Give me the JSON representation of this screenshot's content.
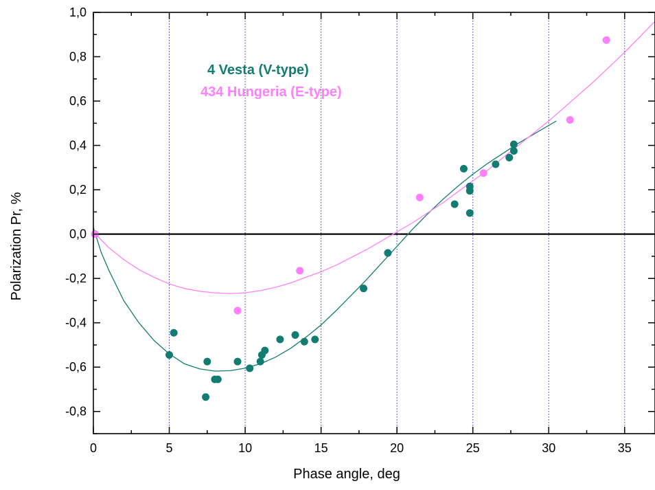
{
  "chart_data": {
    "type": "scatter",
    "xlabel": "Phase angle, deg",
    "ylabel": "Polarization Pr, %",
    "xlim": [
      0,
      37
    ],
    "ylim": [
      -0.9,
      1.0
    ],
    "x_ticks": [
      0,
      5,
      10,
      15,
      20,
      25,
      30,
      35
    ],
    "x_tick_labels": [
      "0",
      "5",
      "10",
      "15",
      "20",
      "25",
      "30",
      "35"
    ],
    "y_ticks": [
      -0.8,
      -0.6,
      -0.4,
      -0.2,
      0.0,
      0.2,
      0.4,
      0.6,
      0.8,
      1.0
    ],
    "y_tick_labels": [
      "-0,8",
      "-0,6",
      "-0,4",
      "-0,2",
      "0,0",
      "0,2",
      "0,4",
      "0,6",
      "0,8",
      "1,0"
    ],
    "vertical_gridlines_at": [
      5,
      10,
      15,
      20,
      25,
      30,
      35
    ],
    "zero_line": true,
    "legend_placement": "top-center",
    "series": [
      {
        "name": "4 Vesta (V-type)",
        "color": "#137c72",
        "points": [
          {
            "x": 0.1,
            "y": 0.0
          },
          {
            "x": 5.0,
            "y": -0.545
          },
          {
            "x": 5.3,
            "y": -0.445
          },
          {
            "x": 7.4,
            "y": -0.735
          },
          {
            "x": 7.5,
            "y": -0.575
          },
          {
            "x": 8.0,
            "y": -0.655
          },
          {
            "x": 8.2,
            "y": -0.655
          },
          {
            "x": 9.5,
            "y": -0.575
          },
          {
            "x": 10.3,
            "y": -0.605
          },
          {
            "x": 11.0,
            "y": -0.575
          },
          {
            "x": 11.1,
            "y": -0.545
          },
          {
            "x": 11.3,
            "y": -0.525
          },
          {
            "x": 12.3,
            "y": -0.475
          },
          {
            "x": 13.3,
            "y": -0.455
          },
          {
            "x": 13.9,
            "y": -0.485
          },
          {
            "x": 14.6,
            "y": -0.475
          },
          {
            "x": 17.8,
            "y": -0.245
          },
          {
            "x": 19.4,
            "y": -0.085
          },
          {
            "x": 23.8,
            "y": 0.135
          },
          {
            "x": 24.4,
            "y": 0.295
          },
          {
            "x": 24.8,
            "y": 0.215
          },
          {
            "x": 24.8,
            "y": 0.195
          },
          {
            "x": 24.8,
            "y": 0.095
          },
          {
            "x": 26.5,
            "y": 0.315
          },
          {
            "x": 27.4,
            "y": 0.345
          },
          {
            "x": 27.7,
            "y": 0.375
          },
          {
            "x": 27.7,
            "y": 0.405
          }
        ],
        "fit_curve": [
          {
            "x": 0,
            "y": 0.03
          },
          {
            "x": 0.5,
            "y": -0.08
          },
          {
            "x": 1.0,
            "y": -0.16
          },
          {
            "x": 2.0,
            "y": -0.3
          },
          {
            "x": 3.0,
            "y": -0.4
          },
          {
            "x": 4.0,
            "y": -0.48
          },
          {
            "x": 5.0,
            "y": -0.54
          },
          {
            "x": 6.0,
            "y": -0.585
          },
          {
            "x": 7.0,
            "y": -0.608
          },
          {
            "x": 8.0,
            "y": -0.618
          },
          {
            "x": 9.0,
            "y": -0.616
          },
          {
            "x": 10.0,
            "y": -0.605
          },
          {
            "x": 11.0,
            "y": -0.585
          },
          {
            "x": 12.0,
            "y": -0.555
          },
          {
            "x": 13.0,
            "y": -0.515
          },
          {
            "x": 14.0,
            "y": -0.465
          },
          {
            "x": 15.0,
            "y": -0.41
          },
          {
            "x": 16.0,
            "y": -0.345
          },
          {
            "x": 17.0,
            "y": -0.275
          },
          {
            "x": 18.0,
            "y": -0.205
          },
          {
            "x": 19.0,
            "y": -0.13
          },
          {
            "x": 20.0,
            "y": -0.055
          },
          {
            "x": 21.0,
            "y": 0.02
          },
          {
            "x": 22.0,
            "y": 0.09
          },
          {
            "x": 23.0,
            "y": 0.155
          },
          {
            "x": 24.0,
            "y": 0.215
          },
          {
            "x": 25.0,
            "y": 0.27
          },
          {
            "x": 26.0,
            "y": 0.32
          },
          {
            "x": 27.0,
            "y": 0.365
          },
          {
            "x": 28.0,
            "y": 0.41
          },
          {
            "x": 29.0,
            "y": 0.45
          },
          {
            "x": 30.0,
            "y": 0.49
          },
          {
            "x": 30.5,
            "y": 0.51
          }
        ]
      },
      {
        "name": "434 Hungeria (E-type)",
        "color": "#ff80ff",
        "points": [
          {
            "x": 0.1,
            "y": 0.0
          },
          {
            "x": 9.5,
            "y": -0.345
          },
          {
            "x": 13.6,
            "y": -0.165
          },
          {
            "x": 21.5,
            "y": 0.165
          },
          {
            "x": 25.7,
            "y": 0.275
          },
          {
            "x": 31.4,
            "y": 0.515
          },
          {
            "x": 33.8,
            "y": 0.875
          }
        ],
        "fit_curve": [
          {
            "x": 0,
            "y": 0.01
          },
          {
            "x": 1.0,
            "y": -0.06
          },
          {
            "x": 2.0,
            "y": -0.115
          },
          {
            "x": 3.0,
            "y": -0.16
          },
          {
            "x": 4.0,
            "y": -0.195
          },
          {
            "x": 5.0,
            "y": -0.225
          },
          {
            "x": 6.0,
            "y": -0.245
          },
          {
            "x": 7.0,
            "y": -0.258
          },
          {
            "x": 8.0,
            "y": -0.265
          },
          {
            "x": 9.0,
            "y": -0.268
          },
          {
            "x": 10.0,
            "y": -0.265
          },
          {
            "x": 11.0,
            "y": -0.255
          },
          {
            "x": 12.0,
            "y": -0.24
          },
          {
            "x": 13.0,
            "y": -0.22
          },
          {
            "x": 14.0,
            "y": -0.195
          },
          {
            "x": 15.0,
            "y": -0.17
          },
          {
            "x": 16.0,
            "y": -0.14
          },
          {
            "x": 17.0,
            "y": -0.105
          },
          {
            "x": 18.0,
            "y": -0.07
          },
          {
            "x": 19.0,
            "y": -0.03
          },
          {
            "x": 20.0,
            "y": 0.01
          },
          {
            "x": 21.0,
            "y": 0.05
          },
          {
            "x": 22.0,
            "y": 0.095
          },
          {
            "x": 23.0,
            "y": 0.14
          },
          {
            "x": 24.0,
            "y": 0.19
          },
          {
            "x": 25.0,
            "y": 0.24
          },
          {
            "x": 26.0,
            "y": 0.29
          },
          {
            "x": 27.0,
            "y": 0.345
          },
          {
            "x": 28.0,
            "y": 0.4
          },
          {
            "x": 29.0,
            "y": 0.455
          },
          {
            "x": 30.0,
            "y": 0.51
          },
          {
            "x": 31.0,
            "y": 0.57
          },
          {
            "x": 32.0,
            "y": 0.63
          },
          {
            "x": 33.0,
            "y": 0.69
          },
          {
            "x": 34.0,
            "y": 0.755
          },
          {
            "x": 35.0,
            "y": 0.82
          },
          {
            "x": 36.0,
            "y": 0.89
          },
          {
            "x": 37.0,
            "y": 0.96
          }
        ]
      }
    ]
  }
}
